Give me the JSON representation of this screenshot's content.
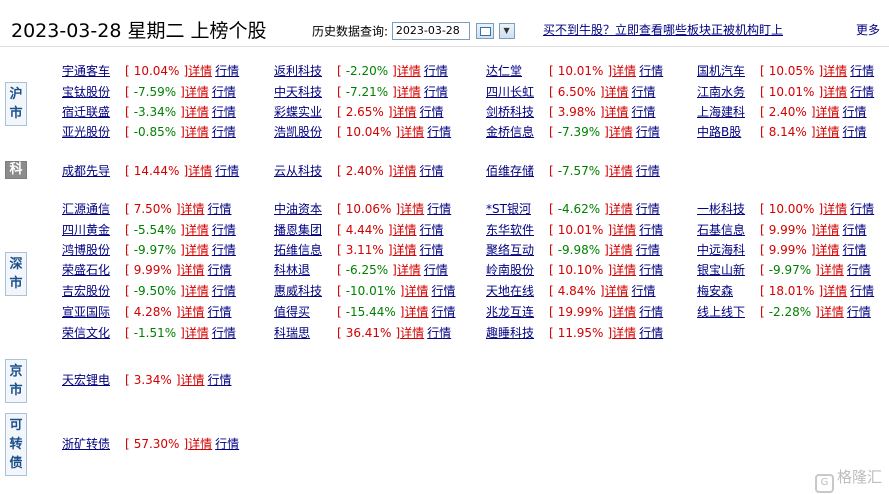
{
  "header": {
    "date": "2023-03-28",
    "weekday": "星期二",
    "title": "上榜个股",
    "query_label": "历史数据查询:",
    "query_date": "2023-03-28",
    "promo": "买不到牛股？立即查看哪些板块正被机构盯上",
    "more": "更多"
  },
  "links": {
    "detail": "详情",
    "quote": "行情"
  },
  "markets": [
    {
      "label": "沪市",
      "chars": [
        "沪",
        "市"
      ],
      "rows": [
        [
          {
            "name": "宇通客车",
            "pct": "10.04%",
            "dir": "up"
          },
          {
            "name": "返利科技",
            "pct": "-2.20%",
            "dir": "down"
          },
          {
            "name": "达仁堂",
            "pct": "10.01%",
            "dir": "up"
          },
          {
            "name": "国机汽车",
            "pct": "10.05%",
            "dir": "up"
          }
        ],
        [
          {
            "name": "宝钛股份",
            "pct": "-7.59%",
            "dir": "down"
          },
          {
            "name": "中天科技",
            "pct": "-7.21%",
            "dir": "down"
          },
          {
            "name": "四川长虹",
            "pct": "6.50%",
            "dir": "up"
          },
          {
            "name": "江南水务",
            "pct": "10.01%",
            "dir": "up"
          }
        ],
        [
          {
            "name": "宿迁联盛",
            "pct": "-3.34%",
            "dir": "down"
          },
          {
            "name": "彩蝶实业",
            "pct": "2.65%",
            "dir": "up"
          },
          {
            "name": "剑桥科技",
            "pct": "3.98%",
            "dir": "up"
          },
          {
            "name": "上海建科",
            "pct": "2.40%",
            "dir": "up"
          }
        ],
        [
          {
            "name": "亚光股份",
            "pct": "-0.85%",
            "dir": "down"
          },
          {
            "name": "浩凯股份",
            "pct": "10.04%",
            "dir": "up"
          },
          {
            "name": "金桥信息",
            "pct": "-7.39%",
            "dir": "down"
          },
          {
            "name": "中路B股",
            "pct": "8.14%",
            "dir": "up"
          }
        ]
      ]
    },
    {
      "label": "科",
      "chars": [
        "科"
      ],
      "rows": [
        [
          {
            "name": "成都先导",
            "pct": "14.44%",
            "dir": "up"
          },
          {
            "name": "云从科技",
            "pct": "2.40%",
            "dir": "up"
          },
          {
            "name": "佰维存储",
            "pct": "-7.57%",
            "dir": "down"
          }
        ]
      ]
    },
    {
      "label": "深市",
      "chars": [
        "深",
        "市"
      ],
      "rows": [
        [
          {
            "name": "汇源通信",
            "pct": "7.50%",
            "dir": "up"
          },
          {
            "name": "中油资本",
            "pct": "10.06%",
            "dir": "up"
          },
          {
            "name": "*ST银河",
            "pct": "-4.62%",
            "dir": "down"
          },
          {
            "name": "一彬科技",
            "pct": "10.00%",
            "dir": "up"
          }
        ],
        [
          {
            "name": "四川黄金",
            "pct": "-5.54%",
            "dir": "down"
          },
          {
            "name": "播恩集团",
            "pct": "4.44%",
            "dir": "up"
          },
          {
            "name": "东华软件",
            "pct": "10.01%",
            "dir": "up"
          },
          {
            "name": "石基信息",
            "pct": "9.99%",
            "dir": "up"
          }
        ],
        [
          {
            "name": "鸿博股份",
            "pct": "-9.97%",
            "dir": "down"
          },
          {
            "name": "拓维信息",
            "pct": "3.11%",
            "dir": "up"
          },
          {
            "name": "聚络互动",
            "pct": "-9.98%",
            "dir": "down"
          },
          {
            "name": "中远海科",
            "pct": "9.99%",
            "dir": "up"
          }
        ],
        [
          {
            "name": "荣盛石化",
            "pct": "9.99%",
            "dir": "up"
          },
          {
            "name": "科林退",
            "pct": "-6.25%",
            "dir": "down"
          },
          {
            "name": "岭南股份",
            "pct": "10.10%",
            "dir": "up"
          },
          {
            "name": "银宝山新",
            "pct": "-9.97%",
            "dir": "down"
          }
        ],
        [
          {
            "name": "吉宏股份",
            "pct": "-9.50%",
            "dir": "down"
          },
          {
            "name": "惠威科技",
            "pct": "-10.01%",
            "dir": "down"
          },
          {
            "name": "天地在线",
            "pct": "4.84%",
            "dir": "up"
          },
          {
            "name": "梅安森",
            "pct": "18.01%",
            "dir": "up"
          }
        ],
        [
          {
            "name": "宣亚国际",
            "pct": "4.28%",
            "dir": "up"
          },
          {
            "name": "值得买",
            "pct": "-15.44%",
            "dir": "down"
          },
          {
            "name": "兆龙互连",
            "pct": "19.99%",
            "dir": "up"
          },
          {
            "name": "线上线下",
            "pct": "-2.28%",
            "dir": "down"
          }
        ],
        [
          {
            "name": "荣信文化",
            "pct": "-1.51%",
            "dir": "down"
          },
          {
            "name": "科瑞思",
            "pct": "36.41%",
            "dir": "up"
          },
          {
            "name": "趣睡科技",
            "pct": "11.95%",
            "dir": "up"
          }
        ]
      ]
    },
    {
      "label": "京市",
      "chars": [
        "京",
        "市"
      ],
      "rows": [
        [
          {
            "name": "天宏锂电",
            "pct": "3.34%",
            "dir": "up"
          }
        ]
      ]
    },
    {
      "label": "可转债",
      "chars": [
        "可",
        "转",
        "债"
      ],
      "rows": [
        [
          {
            "name": "浙矿转债",
            "pct": "57.30%",
            "dir": "up"
          }
        ]
      ]
    }
  ],
  "watermark": "格隆汇",
  "colors": {
    "up": "#d40000",
    "down": "#008000",
    "link": "#000080"
  },
  "icons": {
    "calendar": "calendar-icon",
    "dropdown": "chevron-down-icon",
    "watermark": "gelonghui-logo-icon"
  }
}
